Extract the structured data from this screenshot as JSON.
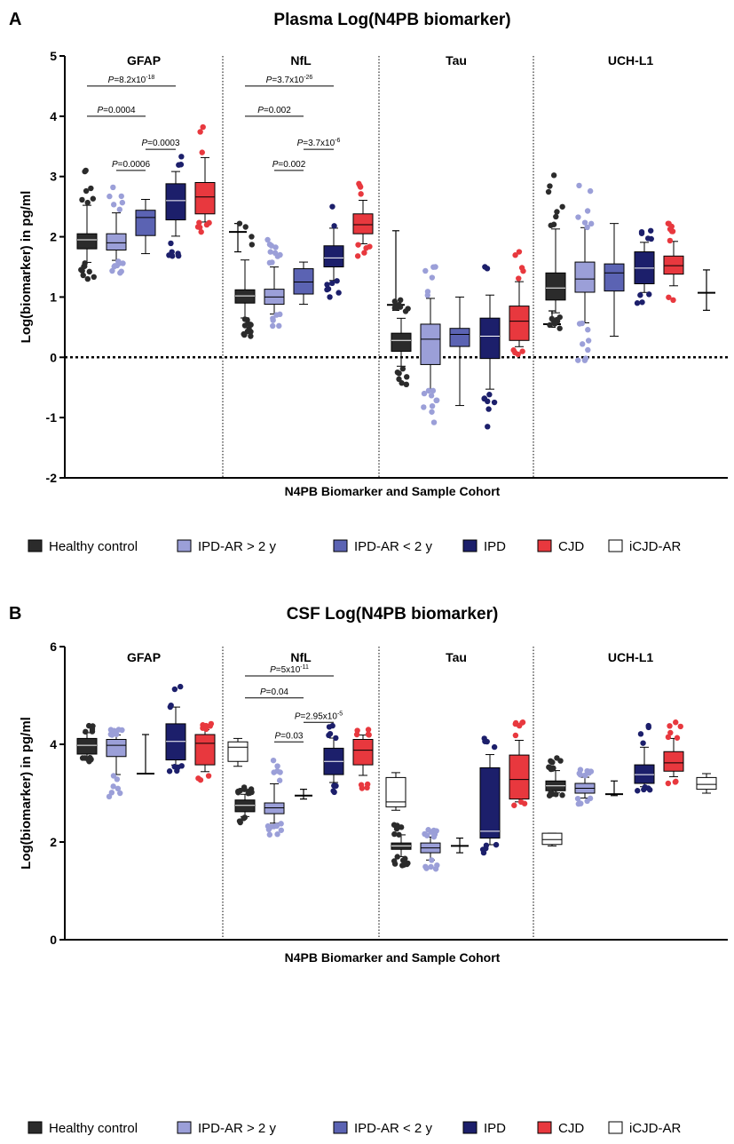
{
  "colors": {
    "Healthy control": "#2b2b2b",
    "IPD-AR > 2 y": "#9b9fd8",
    "IPD-AR < 2 y": "#5b63b3",
    "IPD": "#1c1f6b",
    "CJD": "#e8383e",
    "iCJD-AR": "#ffffff"
  },
  "legend": [
    {
      "label": "Healthy control",
      "key": "Healthy control"
    },
    {
      "label": "IPD-AR  > 2 y",
      "key": "IPD-AR > 2 y"
    },
    {
      "label": "IPD-AR  < 2 y",
      "key": "IPD-AR < 2 y"
    },
    {
      "label": "IPD",
      "key": "IPD"
    },
    {
      "label": "CJD",
      "key": "CJD"
    },
    {
      "label": "iCJD-AR",
      "key": "iCJD-AR"
    }
  ],
  "chart_data": [
    {
      "panel": "A",
      "type": "box",
      "title": "Plasma Log(N4PB biomarker)",
      "ylabel": "Log(biomarker) in pg/ml",
      "xlabel": "N4PB Biomarker and Sample Cohort",
      "ylim": [
        -2,
        5
      ],
      "yticks": [
        5,
        4,
        3,
        2,
        1,
        0,
        -1,
        -2
      ],
      "zero_line": true,
      "biomarkers": [
        "GFAP",
        "NfL",
        "Tau",
        "UCH-L1"
      ],
      "groups": [
        {
          "biomarker": "GFAP",
          "boxes": [
            {
              "cohort": "Healthy control",
              "min": 1.3,
              "q1": 1.8,
              "median": 1.95,
              "q3": 2.05,
              "max": 3.1,
              "style": "points"
            },
            {
              "cohort": "IPD-AR > 2 y",
              "min": 1.4,
              "q1": 1.78,
              "median": 1.9,
              "q3": 2.05,
              "max": 2.82,
              "style": "points"
            },
            {
              "cohort": "IPD-AR < 2 y",
              "min": 1.72,
              "q1": 2.02,
              "median": 2.32,
              "q3": 2.44,
              "max": 2.62,
              "style": "box"
            },
            {
              "cohort": "IPD",
              "min": 1.68,
              "q1": 2.28,
              "median": 2.6,
              "q3": 2.88,
              "max": 3.33,
              "style": "points"
            },
            {
              "cohort": "CJD",
              "min": 2.08,
              "q1": 2.38,
              "median": 2.66,
              "q3": 2.9,
              "max": 3.82,
              "style": "points"
            },
            {
              "cohort": "iCJD-AR",
              "min": 1.75,
              "median": 2.08,
              "max": 2.22,
              "style": "range"
            }
          ],
          "pvalues": [
            {
              "text": "8.2x10",
              "exp": "-18",
              "from": 0,
              "to": 3,
              "y": 4.5
            },
            {
              "text": "0.0004",
              "exp": "",
              "from": 0,
              "to": 2,
              "y": 4.0
            },
            {
              "text": "0.0003",
              "exp": "",
              "from": 2,
              "to": 3,
              "y": 3.45
            },
            {
              "text": "0.0006",
              "exp": "",
              "from": 1,
              "to": 2,
              "y": 3.1
            }
          ]
        },
        {
          "biomarker": "NfL",
          "boxes": [
            {
              "cohort": "Healthy control",
              "min": 0.35,
              "q1": 0.9,
              "median": 1.02,
              "q3": 1.12,
              "max": 2.22,
              "style": "points"
            },
            {
              "cohort": "IPD-AR > 2 y",
              "min": 0.52,
              "q1": 0.88,
              "median": 1.0,
              "q3": 1.13,
              "max": 1.95,
              "style": "points"
            },
            {
              "cohort": "IPD-AR < 2 y",
              "min": 0.88,
              "q1": 1.05,
              "median": 1.25,
              "q3": 1.47,
              "max": 1.58,
              "style": "box"
            },
            {
              "cohort": "IPD",
              "min": 1.0,
              "q1": 1.5,
              "median": 1.65,
              "q3": 1.85,
              "max": 2.5,
              "style": "points"
            },
            {
              "cohort": "CJD",
              "min": 1.68,
              "q1": 2.05,
              "median": 2.2,
              "q3": 2.38,
              "max": 2.88,
              "style": "points"
            },
            {
              "cohort": "iCJD-AR",
              "min": 0.78,
              "median": 0.87,
              "max": 2.1,
              "style": "range"
            }
          ],
          "pvalues": [
            {
              "text": "3.7x10",
              "exp": "-26",
              "from": 0,
              "to": 3,
              "y": 4.5
            },
            {
              "text": "0.002",
              "exp": "",
              "from": 0,
              "to": 2,
              "y": 4.0
            },
            {
              "text": "3.7x10",
              "exp": "-6",
              "from": 2,
              "to": 3,
              "y": 3.45
            },
            {
              "text": "0.002",
              "exp": "",
              "from": 1,
              "to": 2,
              "y": 3.1
            }
          ]
        },
        {
          "biomarker": "Tau",
          "boxes": [
            {
              "cohort": "Healthy control",
              "min": -0.45,
              "q1": 0.1,
              "median": 0.28,
              "q3": 0.4,
              "max": 0.95,
              "style": "points"
            },
            {
              "cohort": "IPD-AR > 2 y",
              "min": -1.08,
              "q1": -0.12,
              "median": 0.3,
              "q3": 0.55,
              "max": 1.5,
              "style": "points"
            },
            {
              "cohort": "IPD-AR < 2 y",
              "min": -0.8,
              "q1": 0.18,
              "median": 0.38,
              "q3": 0.48,
              "max": 1.0,
              "style": "box"
            },
            {
              "cohort": "IPD",
              "min": -1.15,
              "q1": -0.02,
              "median": 0.35,
              "q3": 0.65,
              "max": 1.5,
              "style": "points"
            },
            {
              "cohort": "CJD",
              "min": 0.05,
              "q1": 0.28,
              "median": 0.6,
              "q3": 0.85,
              "max": 1.75,
              "style": "points"
            },
            {
              "cohort": "iCJD-AR",
              "min": 0.5,
              "median": 0.55,
              "max": 0.77,
              "style": "range"
            }
          ],
          "pvalues": []
        },
        {
          "biomarker": "UCH-L1",
          "boxes": [
            {
              "cohort": "Healthy control",
              "min": 0.48,
              "q1": 0.95,
              "median": 1.15,
              "q3": 1.4,
              "max": 3.02,
              "style": "points"
            },
            {
              "cohort": "IPD-AR > 2 y",
              "min": -0.05,
              "q1": 1.08,
              "median": 1.3,
              "q3": 1.58,
              "max": 2.85,
              "style": "points"
            },
            {
              "cohort": "IPD-AR < 2 y",
              "min": 0.35,
              "q1": 1.1,
              "median": 1.4,
              "q3": 1.55,
              "max": 2.22,
              "style": "box"
            },
            {
              "cohort": "IPD",
              "min": 0.9,
              "q1": 1.22,
              "median": 1.48,
              "q3": 1.75,
              "max": 2.1,
              "style": "points"
            },
            {
              "cohort": "CJD",
              "min": 0.95,
              "q1": 1.38,
              "median": 1.52,
              "q3": 1.68,
              "max": 2.22,
              "style": "points"
            },
            {
              "cohort": "iCJD-AR",
              "min": 0.78,
              "median": 1.07,
              "max": 1.45,
              "style": "range"
            }
          ],
          "pvalues": []
        }
      ]
    },
    {
      "panel": "B",
      "type": "box",
      "title": "CSF Log(N4PB biomarker)",
      "ylabel": "Log(biomarker) in pg/ml",
      "xlabel": "N4PB Biomarker and Sample Cohort",
      "ylim": [
        0,
        6
      ],
      "yticks": [
        6,
        4,
        2,
        0
      ],
      "zero_line": false,
      "biomarkers": [
        "GFAP",
        "NfL",
        "Tau",
        "UCH-L1"
      ],
      "groups": [
        {
          "biomarker": "GFAP",
          "boxes": [
            {
              "cohort": "Healthy control",
              "min": 3.65,
              "q1": 3.8,
              "median": 3.98,
              "q3": 4.12,
              "max": 4.38,
              "style": "points"
            },
            {
              "cohort": "IPD-AR > 2 y",
              "min": 2.93,
              "q1": 3.75,
              "median": 3.98,
              "q3": 4.1,
              "max": 4.3,
              "style": "points"
            },
            {
              "cohort": "IPD-AR < 2 y",
              "min": 3.4,
              "median": 3.4,
              "max": 4.2,
              "style": "range"
            },
            {
              "cohort": "IPD",
              "min": 3.45,
              "q1": 3.68,
              "median": 4.06,
              "q3": 4.42,
              "max": 5.18,
              "style": "points"
            },
            {
              "cohort": "CJD",
              "min": 3.27,
              "q1": 3.58,
              "median": 4.02,
              "q3": 4.2,
              "max": 4.42,
              "style": "points"
            },
            {
              "cohort": "iCJD-AR",
              "min": 3.55,
              "q1": 3.65,
              "median": 3.94,
              "q3": 4.05,
              "max": 4.12,
              "style": "box"
            }
          ],
          "pvalues": []
        },
        {
          "biomarker": "NfL",
          "boxes": [
            {
              "cohort": "Healthy control",
              "min": 2.4,
              "q1": 2.62,
              "median": 2.75,
              "q3": 2.86,
              "max": 3.12,
              "style": "points"
            },
            {
              "cohort": "IPD-AR > 2 y",
              "min": 2.15,
              "q1": 2.58,
              "median": 2.7,
              "q3": 2.8,
              "max": 3.67,
              "style": "points"
            },
            {
              "cohort": "IPD-AR < 2 y",
              "min": 2.88,
              "median": 2.95,
              "max": 3.08,
              "style": "range"
            },
            {
              "cohort": "IPD",
              "min": 3.02,
              "q1": 3.38,
              "median": 3.65,
              "q3": 3.92,
              "max": 4.38,
              "style": "points"
            },
            {
              "cohort": "CJD",
              "min": 3.1,
              "q1": 3.58,
              "median": 3.88,
              "q3": 4.1,
              "max": 4.3,
              "style": "points"
            },
            {
              "cohort": "iCJD-AR",
              "min": 2.65,
              "q1": 2.72,
              "median": 2.82,
              "q3": 3.32,
              "max": 3.42,
              "style": "box"
            }
          ],
          "pvalues": [
            {
              "text": "5x10",
              "exp": "-11",
              "from": 0,
              "to": 3,
              "y": 5.4
            },
            {
              "text": "0.04",
              "exp": "",
              "from": 0,
              "to": 2,
              "y": 4.95
            },
            {
              "text": "2.95x10",
              "exp": "-5",
              "from": 2,
              "to": 3,
              "y": 4.45
            },
            {
              "text": "0.03",
              "exp": "",
              "from": 1,
              "to": 2,
              "y": 4.05
            }
          ]
        },
        {
          "biomarker": "Tau",
          "boxes": [
            {
              "cohort": "Healthy control",
              "min": 1.52,
              "q1": 1.85,
              "median": 1.92,
              "q3": 1.98,
              "max": 2.35,
              "style": "points"
            },
            {
              "cohort": "IPD-AR > 2 y",
              "min": 1.45,
              "q1": 1.78,
              "median": 1.88,
              "q3": 1.98,
              "max": 2.25,
              "style": "points"
            },
            {
              "cohort": "IPD-AR < 2 y",
              "min": 1.78,
              "median": 1.92,
              "max": 2.08,
              "style": "range"
            },
            {
              "cohort": "IPD",
              "min": 1.78,
              "q1": 2.08,
              "median": 2.22,
              "q3": 3.52,
              "max": 4.12,
              "style": "points"
            },
            {
              "cohort": "CJD",
              "min": 2.75,
              "q1": 2.88,
              "median": 3.28,
              "q3": 3.78,
              "max": 4.45,
              "style": "points"
            },
            {
              "cohort": "iCJD-AR",
              "min": 1.92,
              "q1": 1.95,
              "median": 2.05,
              "q3": 2.18,
              "max": 2.18,
              "style": "box"
            }
          ],
          "pvalues": []
        },
        {
          "biomarker": "UCH-L1",
          "boxes": [
            {
              "cohort": "Healthy control",
              "min": 2.95,
              "q1": 3.05,
              "median": 3.15,
              "q3": 3.25,
              "max": 3.72,
              "style": "points"
            },
            {
              "cohort": "IPD-AR > 2 y",
              "min": 2.78,
              "q1": 3.0,
              "median": 3.1,
              "q3": 3.2,
              "max": 3.48,
              "style": "points"
            },
            {
              "cohort": "IPD-AR < 2 y",
              "min": 2.95,
              "median": 2.98,
              "max": 3.25,
              "style": "range"
            },
            {
              "cohort": "IPD",
              "min": 3.05,
              "q1": 3.2,
              "median": 3.38,
              "q3": 3.58,
              "max": 4.38,
              "style": "points"
            },
            {
              "cohort": "CJD",
              "min": 3.2,
              "q1": 3.45,
              "median": 3.62,
              "q3": 3.85,
              "max": 4.45,
              "style": "points"
            },
            {
              "cohort": "iCJD-AR",
              "min": 3.0,
              "q1": 3.08,
              "median": 3.18,
              "q3": 3.32,
              "max": 3.4,
              "style": "box"
            }
          ],
          "pvalues": []
        }
      ]
    }
  ]
}
